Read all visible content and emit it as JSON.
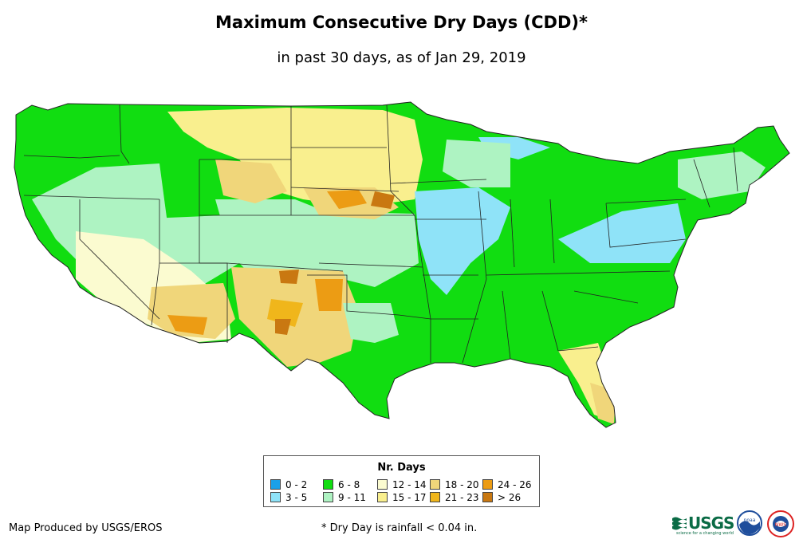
{
  "title": "Maximum Consecutive Dry Days (CDD)*",
  "subtitle": "in past 30 days, as of Jan 29, 2019",
  "legend": {
    "title": "Nr. Days",
    "classes": [
      {
        "label": "0 - 2",
        "color": "#1aa0e8"
      },
      {
        "label": "3 - 5",
        "color": "#8fe3f8"
      },
      {
        "label": "6 - 8",
        "color": "#11dd11"
      },
      {
        "label": "9 - 11",
        "color": "#aef3c2"
      },
      {
        "label": "12 - 14",
        "color": "#fbfbd0"
      },
      {
        "label": "15 - 17",
        "color": "#f9ef8e"
      },
      {
        "label": "18 - 20",
        "color": "#f0d67a"
      },
      {
        "label": "21 - 23",
        "color": "#f0b61b"
      },
      {
        "label": "24 - 26",
        "color": "#ec9c14"
      },
      {
        "label": "> 26",
        "color": "#c97811"
      }
    ]
  },
  "credit": "Map Produced by USGS/EROS",
  "footnote": "* Dry Day is rainfall < 0.04 in.",
  "logos": {
    "usgs": "USGS",
    "usgs_tagline": "science for a changing world",
    "noaa": "noaa",
    "nws": "NWS"
  },
  "colors": {
    "state_border": "#222222",
    "usgs_green": "#0a6b45",
    "noaa_blue": "#1f4e9c"
  }
}
